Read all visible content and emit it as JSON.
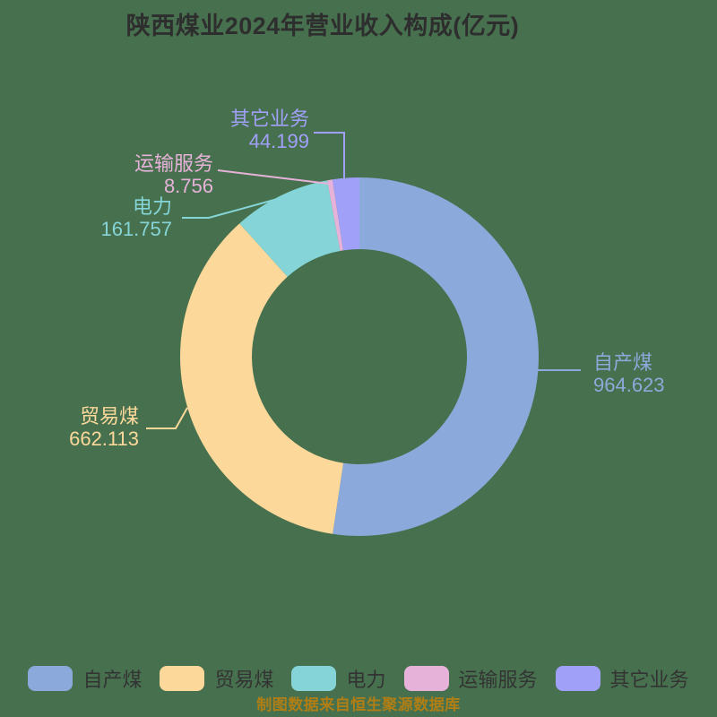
{
  "title": "陕西煤业2024年营业收入构成(亿元)",
  "footer": "制图数据来自恒生聚源数据库",
  "colors": {
    "background": "#47714E",
    "title_text": "#2E2E2E",
    "legend_text": "#333333",
    "footer_text": "#B07E15"
  },
  "chart_data": {
    "type": "pie",
    "subtype": "donut",
    "title": "陕西煤业2024年营业收入构成(亿元)",
    "unit": "亿元",
    "start_angle_deg": 90,
    "direction": "clockwise",
    "inner_radius_ratio": 0.6,
    "legend_position": "bottom",
    "segments": [
      {
        "id": "self-produced-coal",
        "name": "自产煤",
        "value": 964.623,
        "color": "#8CA9DB"
      },
      {
        "id": "trade-coal",
        "name": "贸易煤",
        "value": 662.113,
        "color": "#FDD89B"
      },
      {
        "id": "electricity",
        "name": "电力",
        "value": 161.757,
        "color": "#85D5D8"
      },
      {
        "id": "transport-service",
        "name": "运输服务",
        "value": 8.756,
        "color": "#E7B2D9"
      },
      {
        "id": "other-business",
        "name": "其它业务",
        "value": 44.199,
        "color": "#A1A0F8"
      }
    ]
  }
}
